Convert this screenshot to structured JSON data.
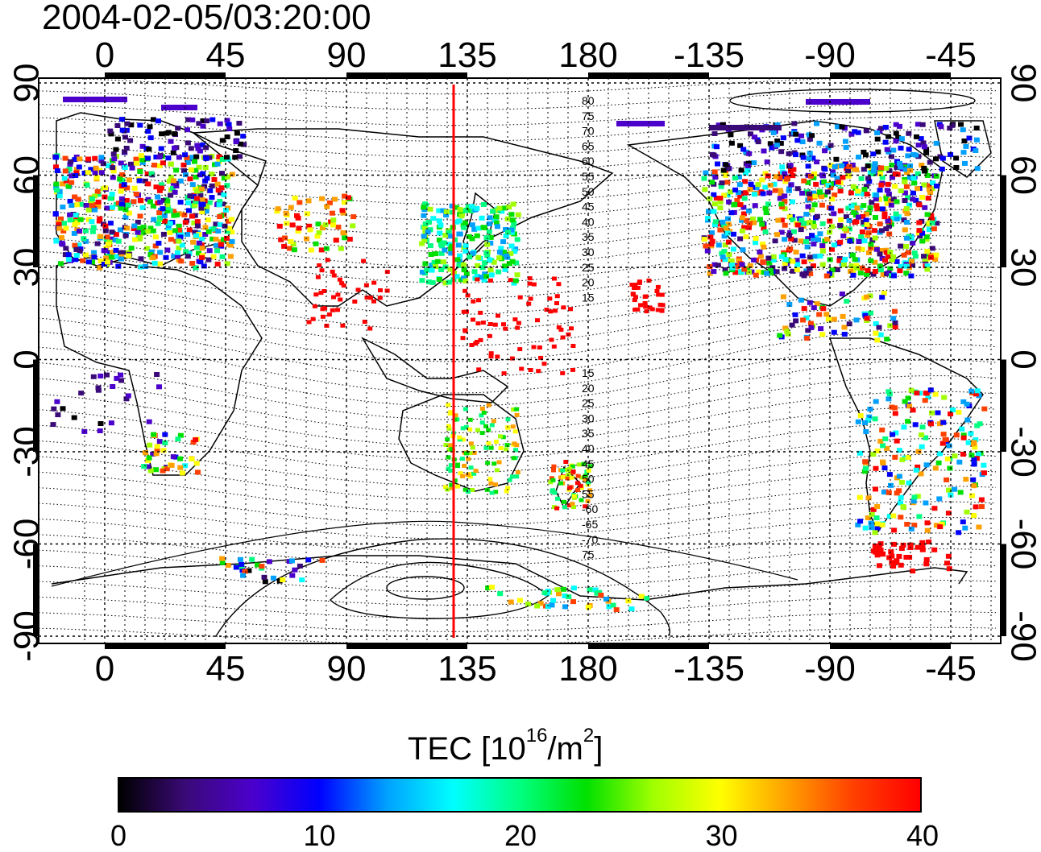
{
  "timestamp": "2004-02-05/03:20:00",
  "map": {
    "top_longitude_labels": [
      "0",
      "45",
      "90",
      "135",
      "180",
      "-135",
      "-90",
      "-45"
    ],
    "bottom_longitude_labels": [
      "0",
      "45",
      "90",
      "135",
      "180",
      "-135",
      "-90",
      "-45"
    ],
    "left_latitude_labels": [
      "90",
      "60",
      "30",
      "0",
      "-30",
      "-60",
      "-90"
    ],
    "right_latitude_labels": [
      "90",
      "60",
      "30",
      "0",
      "-30",
      "-60",
      "-90"
    ],
    "grid": "dotted",
    "contour_labels_north": [
      "80",
      "75",
      "70",
      "65",
      "60",
      "55",
      "50",
      "45",
      "40",
      "35",
      "30",
      "25",
      "20",
      "15"
    ],
    "contour_labels_south": [
      "15",
      "20",
      "25",
      "30",
      "35",
      "40",
      "45",
      "50",
      "55",
      "-60",
      "-65",
      "-70",
      "75"
    ],
    "colors": {
      "terminator_line": "#ff0000",
      "coastline": "#000000"
    }
  },
  "colorbar": {
    "title_prefix": "TEC  [10",
    "title_exp1": "16",
    "title_mid": "/m",
    "title_exp2": "2",
    "title_suffix": "]",
    "ticks": [
      "0",
      "10",
      "20",
      "30",
      "40"
    ],
    "range": [
      0,
      40
    ],
    "colors": [
      "#000000",
      "#3a0a78",
      "#4b00cc",
      "#0000ff",
      "#00a0ff",
      "#00ffff",
      "#00ff80",
      "#00e000",
      "#a0ff00",
      "#ffff00",
      "#ffa000",
      "#ff4000",
      "#ff0000"
    ]
  }
}
